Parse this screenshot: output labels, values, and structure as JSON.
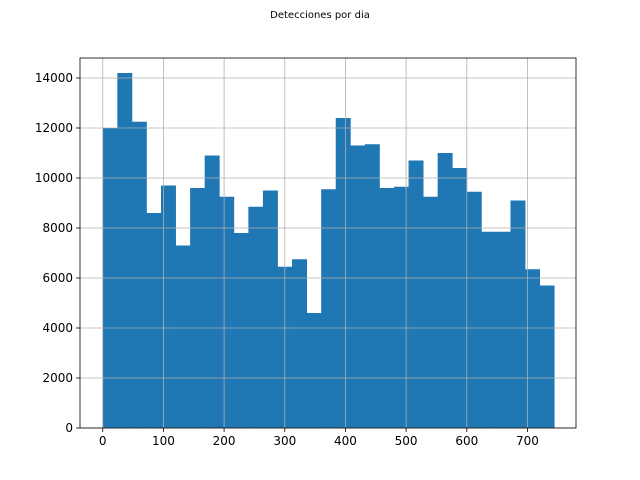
{
  "chart_data": {
    "type": "bar",
    "title": "Detecciones por dia",
    "xlabel": "",
    "ylabel": "",
    "xlim": [
      -37.5,
      780
    ],
    "ylim": [
      0,
      14800
    ],
    "grid": true,
    "x_ticks": [
      0,
      100,
      200,
      300,
      400,
      500,
      600,
      700
    ],
    "y_ticks": [
      0,
      2000,
      4000,
      6000,
      8000,
      10000,
      12000,
      14000
    ],
    "bar_color": "#1f77b4",
    "bin_start": 0,
    "bin_width": 24,
    "values": [
      12000,
      14200,
      12250,
      8600,
      9700,
      7300,
      9600,
      10900,
      9250,
      7800,
      8850,
      9500,
      6450,
      6750,
      4600,
      9550,
      12400,
      11300,
      11350,
      9600,
      9650,
      10700,
      9250,
      11000,
      10400,
      9450,
      7850,
      7850,
      9100,
      6350,
      5700
    ]
  }
}
